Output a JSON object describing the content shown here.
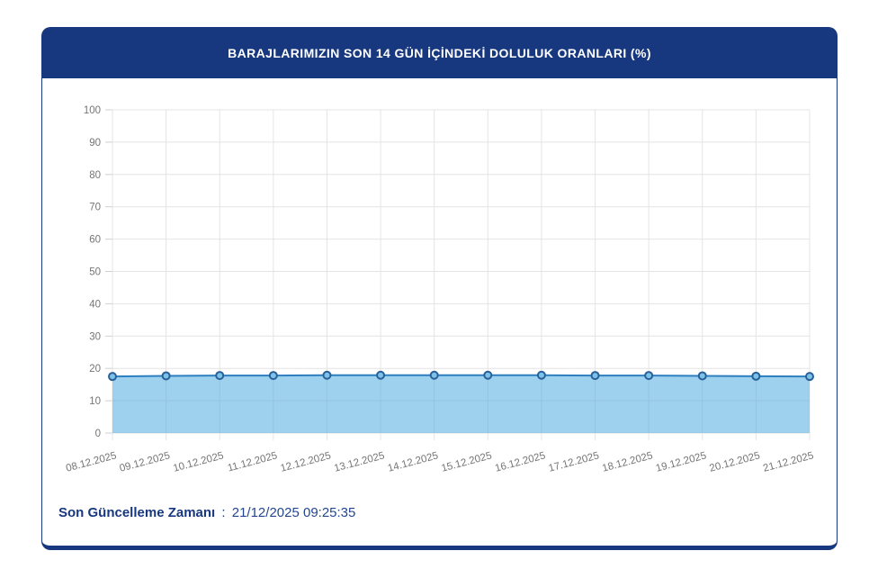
{
  "header": {
    "title": "BARAJLARIMIZIN SON 14 GÜN İÇİNDEKİ DOLULUK ORANLARI (%)"
  },
  "footer": {
    "label": "Son Güncelleme Zamanı",
    "separator": ":",
    "timestamp": "21/12/2025 09:25:35"
  },
  "colors": {
    "navy": "#17377e",
    "title_text": "#ffffff",
    "line": "#2d7fc0",
    "area_fill": "#4fabdf",
    "marker_fill": "#7cc2e8",
    "marker_stroke": "#2a6099",
    "grid": "#e4e4e4",
    "tick": "#cfcfcf",
    "axis_label": "#757575"
  },
  "chart_data": {
    "type": "area",
    "title": "BARAJLARIMIZIN SON 14 GÜN İÇİNDEKİ DOLULUK ORANLARI (%)",
    "categories": [
      "08.12.2025",
      "09.12.2025",
      "10.12.2025",
      "11.12.2025",
      "12.12.2025",
      "13.12.2025",
      "14.12.2025",
      "15.12.2025",
      "16.12.2025",
      "17.12.2025",
      "18.12.2025",
      "19.12.2025",
      "20.12.2025",
      "21.12.2025"
    ],
    "values": [
      17.5,
      17.7,
      17.8,
      17.8,
      17.9,
      17.9,
      17.9,
      17.9,
      17.9,
      17.8,
      17.8,
      17.7,
      17.6,
      17.5
    ],
    "xlabel": "",
    "ylabel": "",
    "ylim": [
      0,
      100
    ],
    "y_ticks": [
      0,
      10,
      20,
      30,
      40,
      50,
      60,
      70,
      80,
      90,
      100
    ],
    "grid": true,
    "legend": false,
    "x_label_rotation": -15
  }
}
